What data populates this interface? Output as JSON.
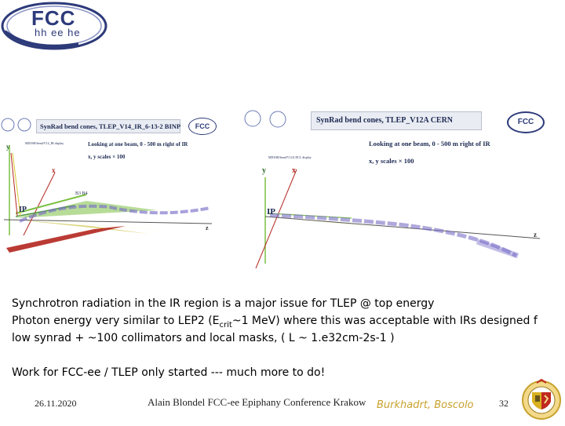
{
  "logo": {
    "main": "FCC",
    "sub": "hh ee he"
  },
  "left_panel": {
    "title": "SynRad bend cones, TLEP_V14_IR_6-13-2  BINP",
    "note1": "Looking at one beam, 0 - 500 m right of IR",
    "note2": "x, y scales  × 100",
    "small_caption": "MDI/SR/bend/V14_IR display",
    "y_label": "y",
    "x_label": "x",
    "z_label": "z",
    "ip_label": "IP",
    "b_labels": "B3    B4",
    "logo_text": "FCC"
  },
  "right_panel": {
    "title": "SynRad bend cones, TLEP_V12A CERN",
    "note1": "Looking at one beam, 0 - 500 m right of IR",
    "note2": "x, y scales  × 100",
    "small_caption": "MDI/SR/bend/V12A DCL display",
    "y_label": "y",
    "x_label": "x",
    "z_label": "z",
    "ip_label": "IP",
    "logo_text": "FCC"
  },
  "text": {
    "line1": "Synchrotron radiation in the IR region is a major issue for TLEP @ top energy",
    "line2_a": "Photon energy very similar to LEP2 (E",
    "line2_sub": "crit",
    "line2_b": "~1 MeV) where this was acceptable with IRs designed f",
    "line3": "low synrad + ~100 collimators and local masks, ( L ~ 1.e32cm-2s-1 )",
    "line4": "Work for FCC-ee / TLEP only started --- much more to do!"
  },
  "footer": {
    "date": "26.11.2020",
    "center": "Alain Blondel  FCC-ee  Epiphany Conference Krakow",
    "authors": "Burkhadrt, Boscolo",
    "page": "32"
  },
  "colors": {
    "navy": "#1d2a52",
    "accent_gold": "#c8a22e",
    "cone_green": "#7bc043",
    "cone_yellow": "#d8c62a",
    "cone_red": "#b3261e",
    "beam_purple": "#7a6fc8"
  }
}
